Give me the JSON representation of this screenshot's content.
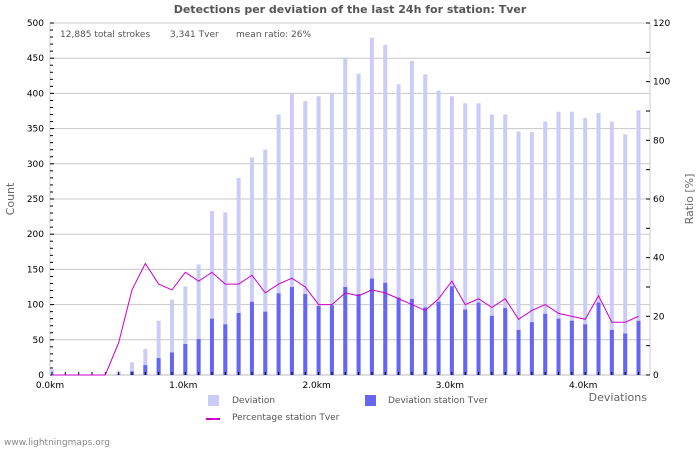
{
  "title": "Detections per deviation of the last 24h for station: Tver",
  "stats": {
    "total": "12,885 total strokes",
    "station": "3,341 Tver",
    "mean_ratio": "mean ratio: 26%"
  },
  "axes": {
    "left_title": "Count",
    "right_title": "Ratio [%]",
    "x_title": "Deviations",
    "left_ticks": [
      "0",
      "50",
      "100",
      "150",
      "200",
      "250",
      "300",
      "350",
      "400",
      "450",
      "500"
    ],
    "right_ticks": [
      "0",
      "20",
      "40",
      "60",
      "80",
      "100",
      "120"
    ],
    "x_ticks": [
      "0.0km",
      "1.0km",
      "2.0km",
      "3.0km",
      "4.0km"
    ]
  },
  "legend": {
    "deviation": "Deviation",
    "deviation_station": "Deviation station Tver",
    "percentage": "Percentage station Tver"
  },
  "colors": {
    "deviation": "#ccccf8",
    "deviation_station": "#6666f4",
    "percentage": "#cc00cc",
    "grid": "#c8c8c8"
  },
  "footer": "www.lightningmaps.org",
  "chart_data": {
    "type": "bar",
    "title": "Detections per deviation of the last 24h for station: Tver",
    "xlabel": "Deviations",
    "ylabel": "Count",
    "y2label": "Ratio [%]",
    "ylim": [
      0,
      500
    ],
    "y2lim": [
      0,
      120
    ],
    "grid": true,
    "legend_position": "bottom",
    "categories": [
      "0.0",
      "0.1",
      "0.2",
      "0.3",
      "0.4",
      "0.5",
      "0.6",
      "0.7",
      "0.8",
      "0.9",
      "1.0",
      "1.1",
      "1.2",
      "1.3",
      "1.4",
      "1.5",
      "1.6",
      "1.7",
      "1.8",
      "1.9",
      "2.0",
      "2.1",
      "2.2",
      "2.3",
      "2.4",
      "2.5",
      "2.6",
      "2.7",
      "2.8",
      "2.9",
      "3.0",
      "3.1",
      "3.2",
      "3.3",
      "3.4",
      "3.5",
      "3.6",
      "3.7",
      "3.8",
      "3.9",
      "4.0",
      "4.1",
      "4.2",
      "4.3",
      "4.4"
    ],
    "series": [
      {
        "name": "Deviation",
        "type": "bar",
        "axis": "left",
        "values": [
          8,
          1,
          0,
          0,
          0,
          6,
          18,
          37,
          77,
          107,
          126,
          157,
          233,
          231,
          280,
          309,
          320,
          370,
          401,
          389,
          396,
          401,
          451,
          428,
          479,
          469,
          413,
          446,
          427,
          404,
          396,
          386,
          386,
          370,
          370,
          346,
          345,
          360,
          374,
          374,
          365,
          372,
          360,
          342,
          376
        ]
      },
      {
        "name": "Deviation station Tver",
        "type": "bar",
        "axis": "left",
        "values": [
          1,
          0,
          0,
          0,
          0,
          1,
          5,
          14,
          24,
          32,
          44,
          51,
          80,
          72,
          88,
          104,
          90,
          116,
          125,
          115,
          98,
          99,
          125,
          115,
          137,
          131,
          110,
          108,
          96,
          104,
          126,
          93,
          103,
          84,
          95,
          64,
          75,
          87,
          80,
          77,
          72,
          103,
          64,
          59,
          77
        ]
      },
      {
        "name": "Percentage station Tver",
        "type": "line",
        "axis": "right",
        "values": [
          0,
          0,
          0,
          0,
          0,
          11,
          29,
          38,
          31,
          29,
          35,
          32,
          35,
          31,
          31,
          34,
          28,
          31,
          33,
          30,
          24,
          24,
          28,
          27,
          29,
          28,
          26,
          24,
          22,
          26,
          32,
          24,
          26,
          23,
          26,
          19,
          22,
          24,
          21,
          20,
          19,
          27,
          18,
          18,
          20
        ]
      }
    ]
  }
}
